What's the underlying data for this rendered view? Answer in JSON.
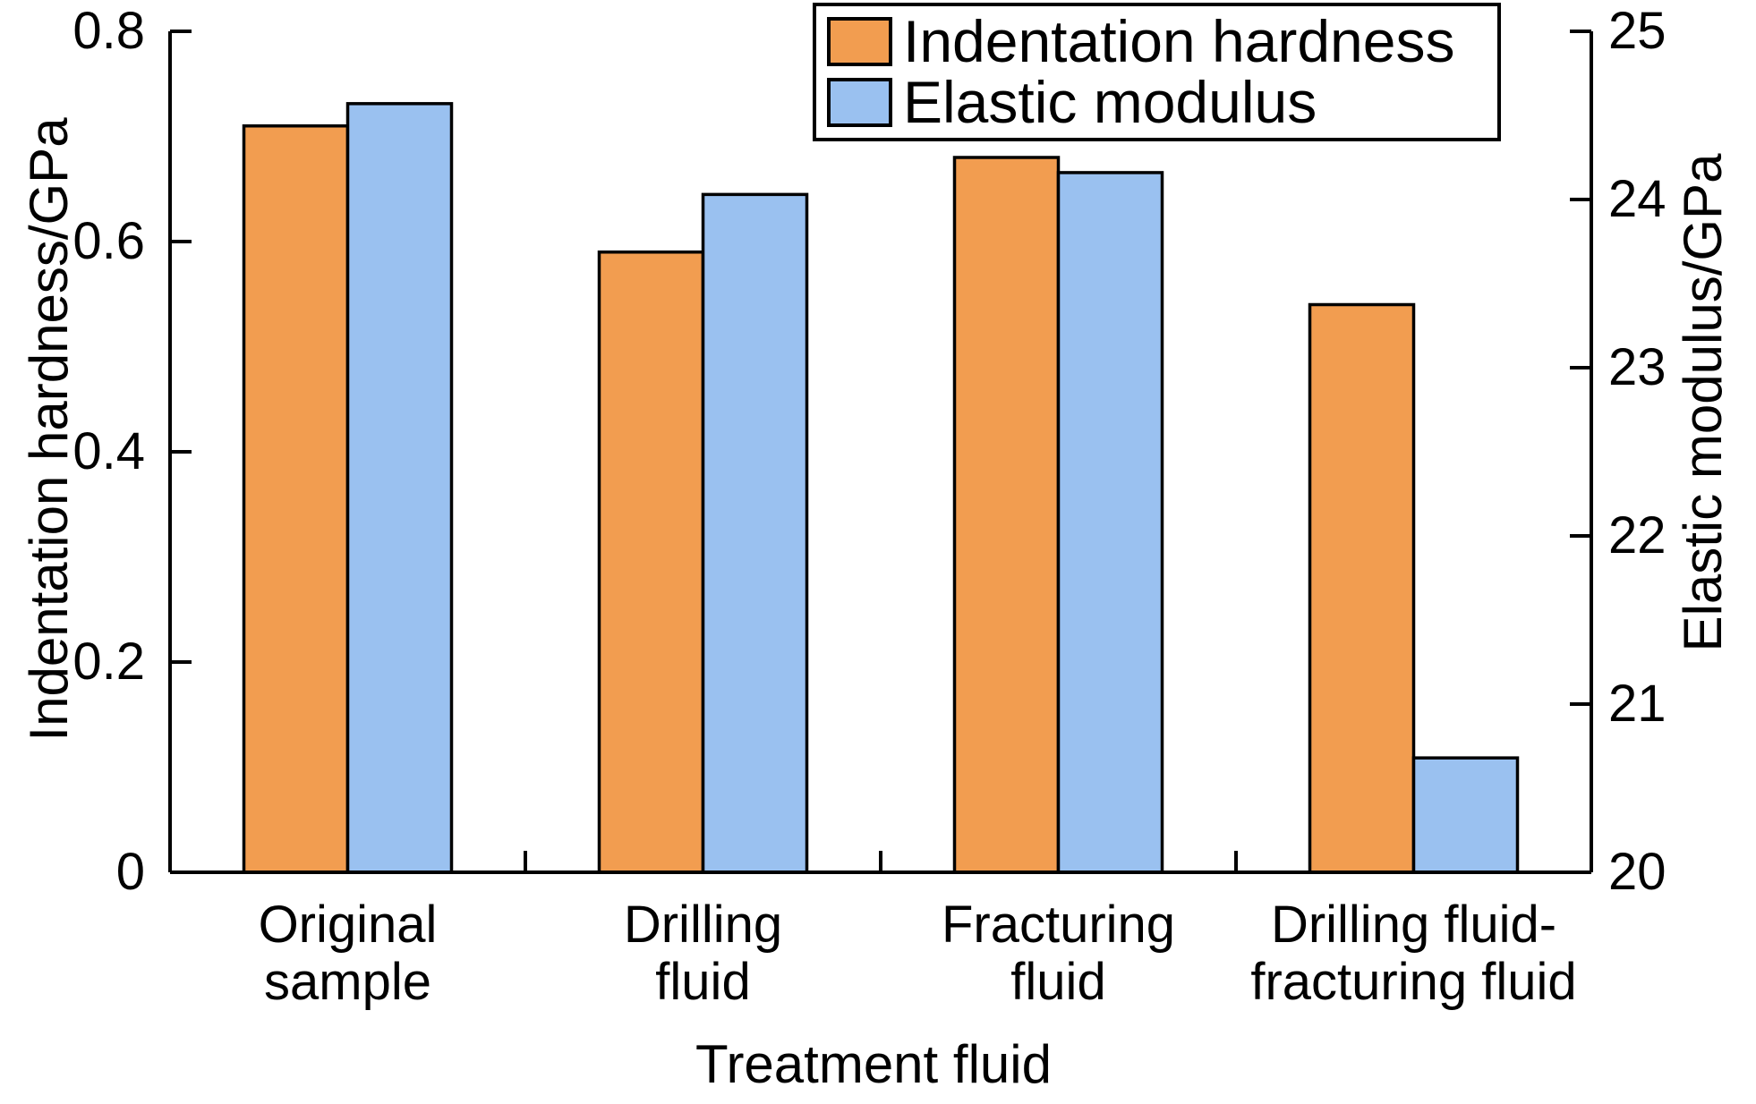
{
  "figure": {
    "background": "#ffffff",
    "text_color": "#000000",
    "axis_color": "#000000"
  },
  "chart_data": {
    "type": "bar",
    "title": "",
    "categories": [
      "Original\nsample",
      "Drilling\nfluid",
      "Fracturing\nfluid",
      "Drilling fluid-\nfracturing fluid"
    ],
    "series": [
      {
        "name": "Indentation hardness",
        "axis": "left",
        "color": "#F29D50",
        "edge_color": "#000000",
        "values": [
          0.71,
          0.59,
          0.68,
          0.54
        ]
      },
      {
        "name": "Elastic modulus",
        "axis": "right",
        "color": "#9AC1F0",
        "edge_color": "#000000",
        "values": [
          24.57,
          24.03,
          24.16,
          20.68
        ]
      }
    ],
    "x_axis": {
      "label": "Treatment fluid"
    },
    "left_axis": {
      "label": "Indentation hardness/GPa",
      "min": 0,
      "max": 0.8,
      "ticks": [
        0,
        0.2,
        0.4,
        0.6,
        0.8
      ],
      "tick_labels": [
        "0",
        "0.2",
        "0.4",
        "0.6",
        "0.8"
      ]
    },
    "right_axis": {
      "label": "Elastic modulus/GPa",
      "min": 20,
      "max": 25,
      "ticks": [
        20,
        21,
        22,
        23,
        24,
        25
      ],
      "tick_labels": [
        "20",
        "21",
        "22",
        "23",
        "24",
        "25"
      ]
    },
    "legend": {
      "position": "top-center",
      "border": true
    },
    "grid": false
  }
}
